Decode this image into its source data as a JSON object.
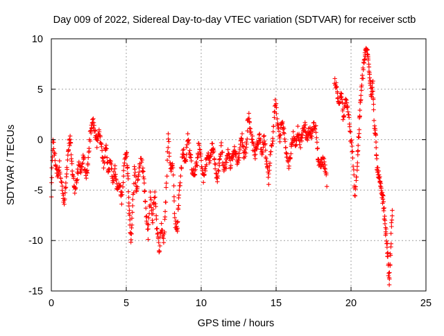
{
  "chart_data": {
    "type": "scatter",
    "title": "Day 009 of 2022, Sidereal Day-to-day VTEC variation (SDTVAR) for receiver sctb",
    "xlabel": "GPS time / hours",
    "ylabel": "SDTVAR / TECUs",
    "xlim": [
      0,
      25
    ],
    "ylim": [
      -15,
      10
    ],
    "x_ticks": [
      0,
      5,
      10,
      15,
      20,
      25
    ],
    "y_ticks": [
      -15,
      -10,
      -5,
      0,
      5,
      10
    ],
    "x_tick_labels": [
      "0",
      "5",
      "10",
      "15",
      "20",
      "25"
    ],
    "y_tick_labels": [
      "-15",
      "-10",
      "-5",
      "0",
      "5",
      "10"
    ],
    "grid": true,
    "marker": "plus",
    "series": [
      {
        "name": "SDTVAR",
        "color": "#ff0000",
        "trace": [
          [
            0.0,
            -5.5
          ],
          [
            0.1,
            0.0
          ],
          [
            0.25,
            -2.0
          ],
          [
            0.4,
            -3.5
          ],
          [
            0.55,
            -2.5
          ],
          [
            0.7,
            -4.5
          ],
          [
            0.85,
            -6.5
          ],
          [
            1.0,
            -4.0
          ],
          [
            1.15,
            -1.0
          ],
          [
            1.25,
            0.2
          ],
          [
            1.4,
            -3.0
          ],
          [
            1.55,
            -5.0
          ],
          [
            1.7,
            -4.0
          ],
          [
            1.85,
            -2.5
          ],
          [
            2.0,
            -3.0
          ],
          [
            2.15,
            -1.5
          ],
          [
            2.3,
            -4.0
          ],
          [
            2.45,
            -2.5
          ],
          [
            2.6,
            0.5
          ],
          [
            2.75,
            2.0
          ],
          [
            2.9,
            1.0
          ],
          [
            3.05,
            -0.5
          ],
          [
            3.2,
            1.0
          ],
          [
            3.35,
            -1.0
          ],
          [
            3.5,
            -2.5
          ],
          [
            3.65,
            -0.5
          ],
          [
            3.8,
            -3.0
          ],
          [
            3.95,
            -2.0
          ],
          [
            4.1,
            -4.0
          ],
          [
            4.25,
            -3.0
          ],
          [
            4.4,
            -5.0
          ],
          [
            4.55,
            -4.5
          ],
          [
            4.7,
            -6.0
          ],
          [
            4.85,
            -2.5
          ],
          [
            5.0,
            -1.0
          ],
          [
            5.1,
            -3.0
          ],
          [
            5.2,
            -7.0
          ],
          [
            5.3,
            -10.0
          ],
          [
            5.4,
            -7.5
          ],
          [
            5.55,
            -3.0
          ],
          [
            5.7,
            -5.0
          ],
          [
            5.85,
            -3.0
          ],
          [
            6.0,
            -2.0
          ],
          [
            6.15,
            -3.5
          ],
          [
            6.3,
            -7.0
          ],
          [
            6.45,
            -9.5
          ],
          [
            6.6,
            -5.5
          ],
          [
            6.75,
            -8.0
          ],
          [
            6.9,
            -5.0
          ],
          [
            7.05,
            -9.0
          ],
          [
            7.2,
            -11.0
          ],
          [
            7.35,
            -8.5
          ],
          [
            7.5,
            -10.0
          ],
          [
            7.65,
            -6.0
          ],
          [
            7.8,
            0.5
          ],
          [
            7.95,
            -3.0
          ],
          [
            8.1,
            -2.0
          ],
          [
            8.25,
            -8.0
          ],
          [
            8.4,
            -9.0
          ],
          [
            8.5,
            -6.0
          ],
          [
            8.65,
            -3.0
          ],
          [
            8.8,
            -1.0
          ],
          [
            8.95,
            -2.5
          ],
          [
            9.1,
            0.5
          ],
          [
            9.25,
            -1.5
          ],
          [
            9.4,
            -3.0
          ],
          [
            9.55,
            -3.5
          ],
          [
            9.7,
            -2.5
          ],
          [
            9.85,
            -0.5
          ],
          [
            10.0,
            -2.0
          ],
          [
            10.15,
            -4.0
          ],
          [
            10.3,
            -2.5
          ],
          [
            10.45,
            -1.5
          ],
          [
            10.6,
            -2.0
          ],
          [
            10.75,
            -0.5
          ],
          [
            10.9,
            -2.0
          ],
          [
            11.05,
            -4.0
          ],
          [
            11.2,
            -2.5
          ],
          [
            11.35,
            -0.5
          ],
          [
            11.5,
            -3.0
          ],
          [
            11.65,
            -2.5
          ],
          [
            11.8,
            -1.0
          ],
          [
            11.95,
            -2.5
          ],
          [
            12.1,
            -1.5
          ],
          [
            12.25,
            -1.0
          ],
          [
            12.4,
            -2.0
          ],
          [
            12.55,
            -1.5
          ],
          [
            12.7,
            0.5
          ],
          [
            12.85,
            -1.5
          ],
          [
            13.0,
            -1.0
          ],
          [
            13.15,
            2.5
          ],
          [
            13.3,
            1.0
          ],
          [
            13.45,
            -0.5
          ],
          [
            13.6,
            -1.5
          ],
          [
            13.75,
            -0.5
          ],
          [
            13.9,
            0.5
          ],
          [
            14.05,
            -1.5
          ],
          [
            14.2,
            0.5
          ],
          [
            14.35,
            -2.0
          ],
          [
            14.5,
            -4.0
          ],
          [
            14.65,
            -1.0
          ],
          [
            14.8,
            0.5
          ],
          [
            14.95,
            4.0
          ],
          [
            15.1,
            1.5
          ],
          [
            15.25,
            0.0
          ],
          [
            15.4,
            2.0
          ],
          [
            15.55,
            0.5
          ],
          [
            15.7,
            -1.5
          ],
          [
            15.85,
            -2.5
          ],
          [
            16.0,
            -1.0
          ],
          [
            16.15,
            0.5
          ],
          [
            16.3,
            -0.5
          ],
          [
            16.45,
            1.0
          ],
          [
            16.6,
            -0.5
          ],
          [
            16.75,
            0.5
          ],
          [
            16.9,
            1.5
          ],
          [
            17.05,
            0.0
          ],
          [
            17.2,
            1.0
          ],
          [
            17.35,
            0.5
          ],
          [
            17.5,
            1.5
          ],
          [
            17.65,
            1.0
          ],
          [
            17.8,
            -2.0
          ],
          [
            17.95,
            -2.5
          ],
          [
            18.1,
            -2.0
          ],
          [
            18.25,
            -2.5
          ],
          [
            18.4,
            -4.5
          ],
          [
            18.9,
            6.0
          ],
          [
            19.05,
            5.0
          ],
          [
            19.2,
            3.5
          ],
          [
            19.35,
            4.5
          ],
          [
            19.5,
            2.0
          ],
          [
            19.65,
            4.0
          ],
          [
            19.8,
            3.0
          ],
          [
            19.95,
            0.5
          ],
          [
            20.1,
            -1.5
          ],
          [
            20.25,
            -5.5
          ],
          [
            20.4,
            -3.0
          ],
          [
            20.5,
            0.0
          ],
          [
            20.6,
            3.0
          ],
          [
            20.7,
            5.0
          ],
          [
            20.85,
            7.5
          ],
          [
            20.95,
            8.5
          ],
          [
            21.05,
            9.0
          ],
          [
            21.15,
            8.0
          ],
          [
            21.25,
            6.5
          ],
          [
            21.35,
            4.5
          ],
          [
            21.45,
            5.5
          ],
          [
            21.55,
            1.5
          ],
          [
            21.65,
            0.0
          ],
          [
            21.75,
            -3.0
          ],
          [
            21.85,
            -3.5
          ],
          [
            21.95,
            -4.5
          ],
          [
            22.05,
            -5.5
          ],
          [
            22.15,
            -6.0
          ],
          [
            22.25,
            -8.0
          ],
          [
            22.35,
            -9.5
          ],
          [
            22.45,
            -11.5
          ],
          [
            22.55,
            -14.5
          ],
          [
            22.65,
            -10.5
          ],
          [
            22.75,
            -7.0
          ]
        ]
      }
    ]
  }
}
